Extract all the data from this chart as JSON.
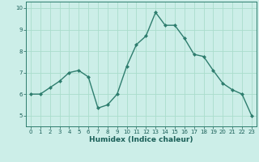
{
  "x": [
    0,
    1,
    2,
    3,
    4,
    5,
    6,
    7,
    8,
    9,
    10,
    11,
    12,
    13,
    14,
    15,
    16,
    17,
    18,
    19,
    20,
    21,
    22,
    23
  ],
  "y": [
    6.0,
    6.0,
    6.3,
    6.6,
    7.0,
    7.1,
    6.8,
    5.35,
    5.5,
    6.0,
    7.3,
    8.3,
    8.7,
    9.8,
    9.2,
    9.2,
    8.6,
    7.85,
    7.75,
    7.1,
    6.5,
    6.2,
    6.0,
    5.0
  ],
  "line_color": "#2e7d6e",
  "marker": "D",
  "marker_size": 2.0,
  "line_width": 1.0,
  "bg_color": "#cceee8",
  "grid_color": "#aaddcc",
  "xlabel": "Humidex (Indice chaleur)",
  "xlabel_fontsize": 6.5,
  "xlabel_color": "#1a5f58",
  "xlim": [
    -0.5,
    23.5
  ],
  "ylim": [
    4.5,
    10.3
  ],
  "yticks": [
    5,
    6,
    7,
    8,
    9,
    10
  ],
  "xticks": [
    0,
    1,
    2,
    3,
    4,
    5,
    6,
    7,
    8,
    9,
    10,
    11,
    12,
    13,
    14,
    15,
    16,
    17,
    18,
    19,
    20,
    21,
    22,
    23
  ],
  "tick_color": "#1a5f58",
  "tick_fontsize": 5.0,
  "axis_color": "#2e7d6e"
}
